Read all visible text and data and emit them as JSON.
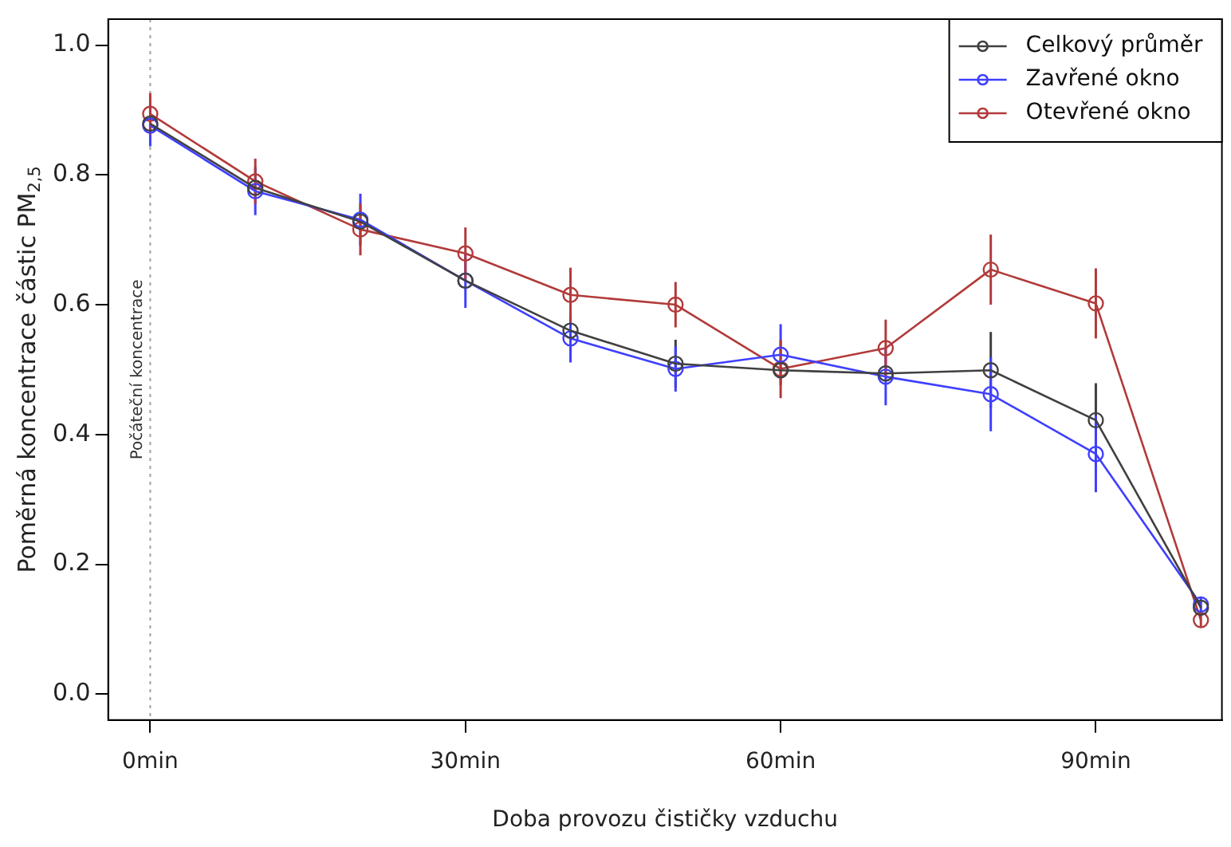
{
  "chart_data": {
    "type": "line",
    "xlabel": "Doba provozu čističky vzduchu",
    "ylabel": "Poměrná koncentrace částic PM$_{2,5}$",
    "x": [
      0,
      10,
      20,
      30,
      40,
      50,
      60,
      70,
      80,
      90,
      100
    ],
    "series": [
      {
        "name": "Celkový průměr",
        "color": "#404040",
        "values": [
          0.879,
          0.78,
          0.728,
          0.637,
          0.56,
          0.509,
          0.499,
          0.494,
          0.499,
          0.422,
          0.133
        ],
        "errors": [
          null,
          null,
          null,
          null,
          null,
          0.037,
          null,
          null,
          0.059,
          0.057,
          null
        ]
      },
      {
        "name": "Zavřené okno",
        "color": "#3f3fff",
        "values": [
          0.876,
          0.775,
          0.731,
          0.637,
          0.548,
          0.501,
          0.523,
          0.489,
          0.462,
          0.37,
          0.138
        ],
        "errors": [
          0.032,
          0.037,
          0.04,
          0.042,
          0.037,
          0.035,
          0.047,
          0.044,
          0.057,
          0.059,
          0.01
        ]
      },
      {
        "name": "Otevřené okno",
        "color": "#b23a3a",
        "values": [
          0.894,
          0.79,
          0.716,
          0.679,
          0.615,
          0.6,
          0.501,
          0.533,
          0.654,
          0.602,
          0.114
        ],
        "errors": [
          0.032,
          0.035,
          0.04,
          0.04,
          0.042,
          0.035,
          0.045,
          0.044,
          0.054,
          0.054,
          0.01
        ]
      }
    ],
    "xlim": [
      -4,
      102
    ],
    "ylim": [
      -0.04,
      1.04
    ],
    "xticks": [
      {
        "value": 0,
        "label": "0min"
      },
      {
        "value": 30,
        "label": "30min"
      },
      {
        "value": 60,
        "label": "60min"
      },
      {
        "value": 90,
        "label": "90min"
      }
    ],
    "yticks": [
      {
        "value": 0,
        "label": "0.0"
      },
      {
        "value": 0.2,
        "label": "0.2"
      },
      {
        "value": 0.4,
        "label": "0.4"
      },
      {
        "value": 0.6,
        "label": "0.6"
      },
      {
        "value": 0.8,
        "label": "0.8"
      },
      {
        "value": 1,
        "label": "1.0"
      }
    ],
    "ref_lines": [
      {
        "axis": "x",
        "value": 0,
        "label": "Počáteční koncentrace",
        "color": "#a0a0a0",
        "line_style": "dotted"
      }
    ],
    "grid": false,
    "legend": "top right",
    "marker": "circle",
    "line_style": "solid"
  }
}
